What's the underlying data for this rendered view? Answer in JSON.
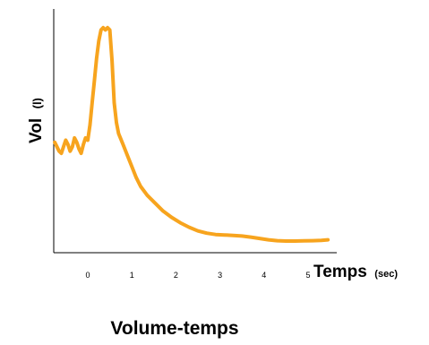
{
  "chart_data": {
    "type": "line",
    "title": "Volume-temps",
    "ylabel": "Vol",
    "ylabel_unit": "(l)",
    "xlabel": "Temps",
    "xlabel_unit": "(sec)",
    "x_ticks": [
      "0",
      "1",
      "2",
      "3",
      "4",
      "5"
    ],
    "xlim": [
      -0.75,
      5.55
    ],
    "ylim": [
      0,
      1
    ],
    "grid": false,
    "series": [
      {
        "color": "#F7A41E",
        "x": [
          -0.75,
          -0.7,
          -0.65,
          -0.6,
          -0.55,
          -0.5,
          -0.45,
          -0.4,
          -0.35,
          -0.3,
          -0.25,
          -0.2,
          -0.15,
          -0.1,
          -0.05,
          0.0,
          0.05,
          0.1,
          0.15,
          0.2,
          0.25,
          0.3,
          0.35,
          0.4,
          0.45,
          0.5,
          0.55,
          0.6,
          0.65,
          0.7,
          0.8,
          0.9,
          1.0,
          1.1,
          1.2,
          1.35,
          1.5,
          1.7,
          1.9,
          2.1,
          2.3,
          2.5,
          2.7,
          2.9,
          3.1,
          3.3,
          3.5,
          3.7,
          3.9,
          4.1,
          4.3,
          4.5,
          4.7,
          4.9,
          5.1,
          5.3,
          5.45
        ],
        "y": [
          0.46,
          0.44,
          0.42,
          0.41,
          0.44,
          0.47,
          0.45,
          0.42,
          0.44,
          0.48,
          0.46,
          0.43,
          0.41,
          0.45,
          0.48,
          0.47,
          0.54,
          0.64,
          0.74,
          0.84,
          0.92,
          0.97,
          0.98,
          0.97,
          0.98,
          0.97,
          0.83,
          0.64,
          0.55,
          0.5,
          0.45,
          0.4,
          0.35,
          0.3,
          0.26,
          0.22,
          0.19,
          0.15,
          0.12,
          0.095,
          0.075,
          0.058,
          0.048,
          0.042,
          0.04,
          0.038,
          0.035,
          0.03,
          0.024,
          0.018,
          0.014,
          0.012,
          0.012,
          0.013,
          0.014,
          0.015,
          0.018
        ]
      }
    ]
  }
}
